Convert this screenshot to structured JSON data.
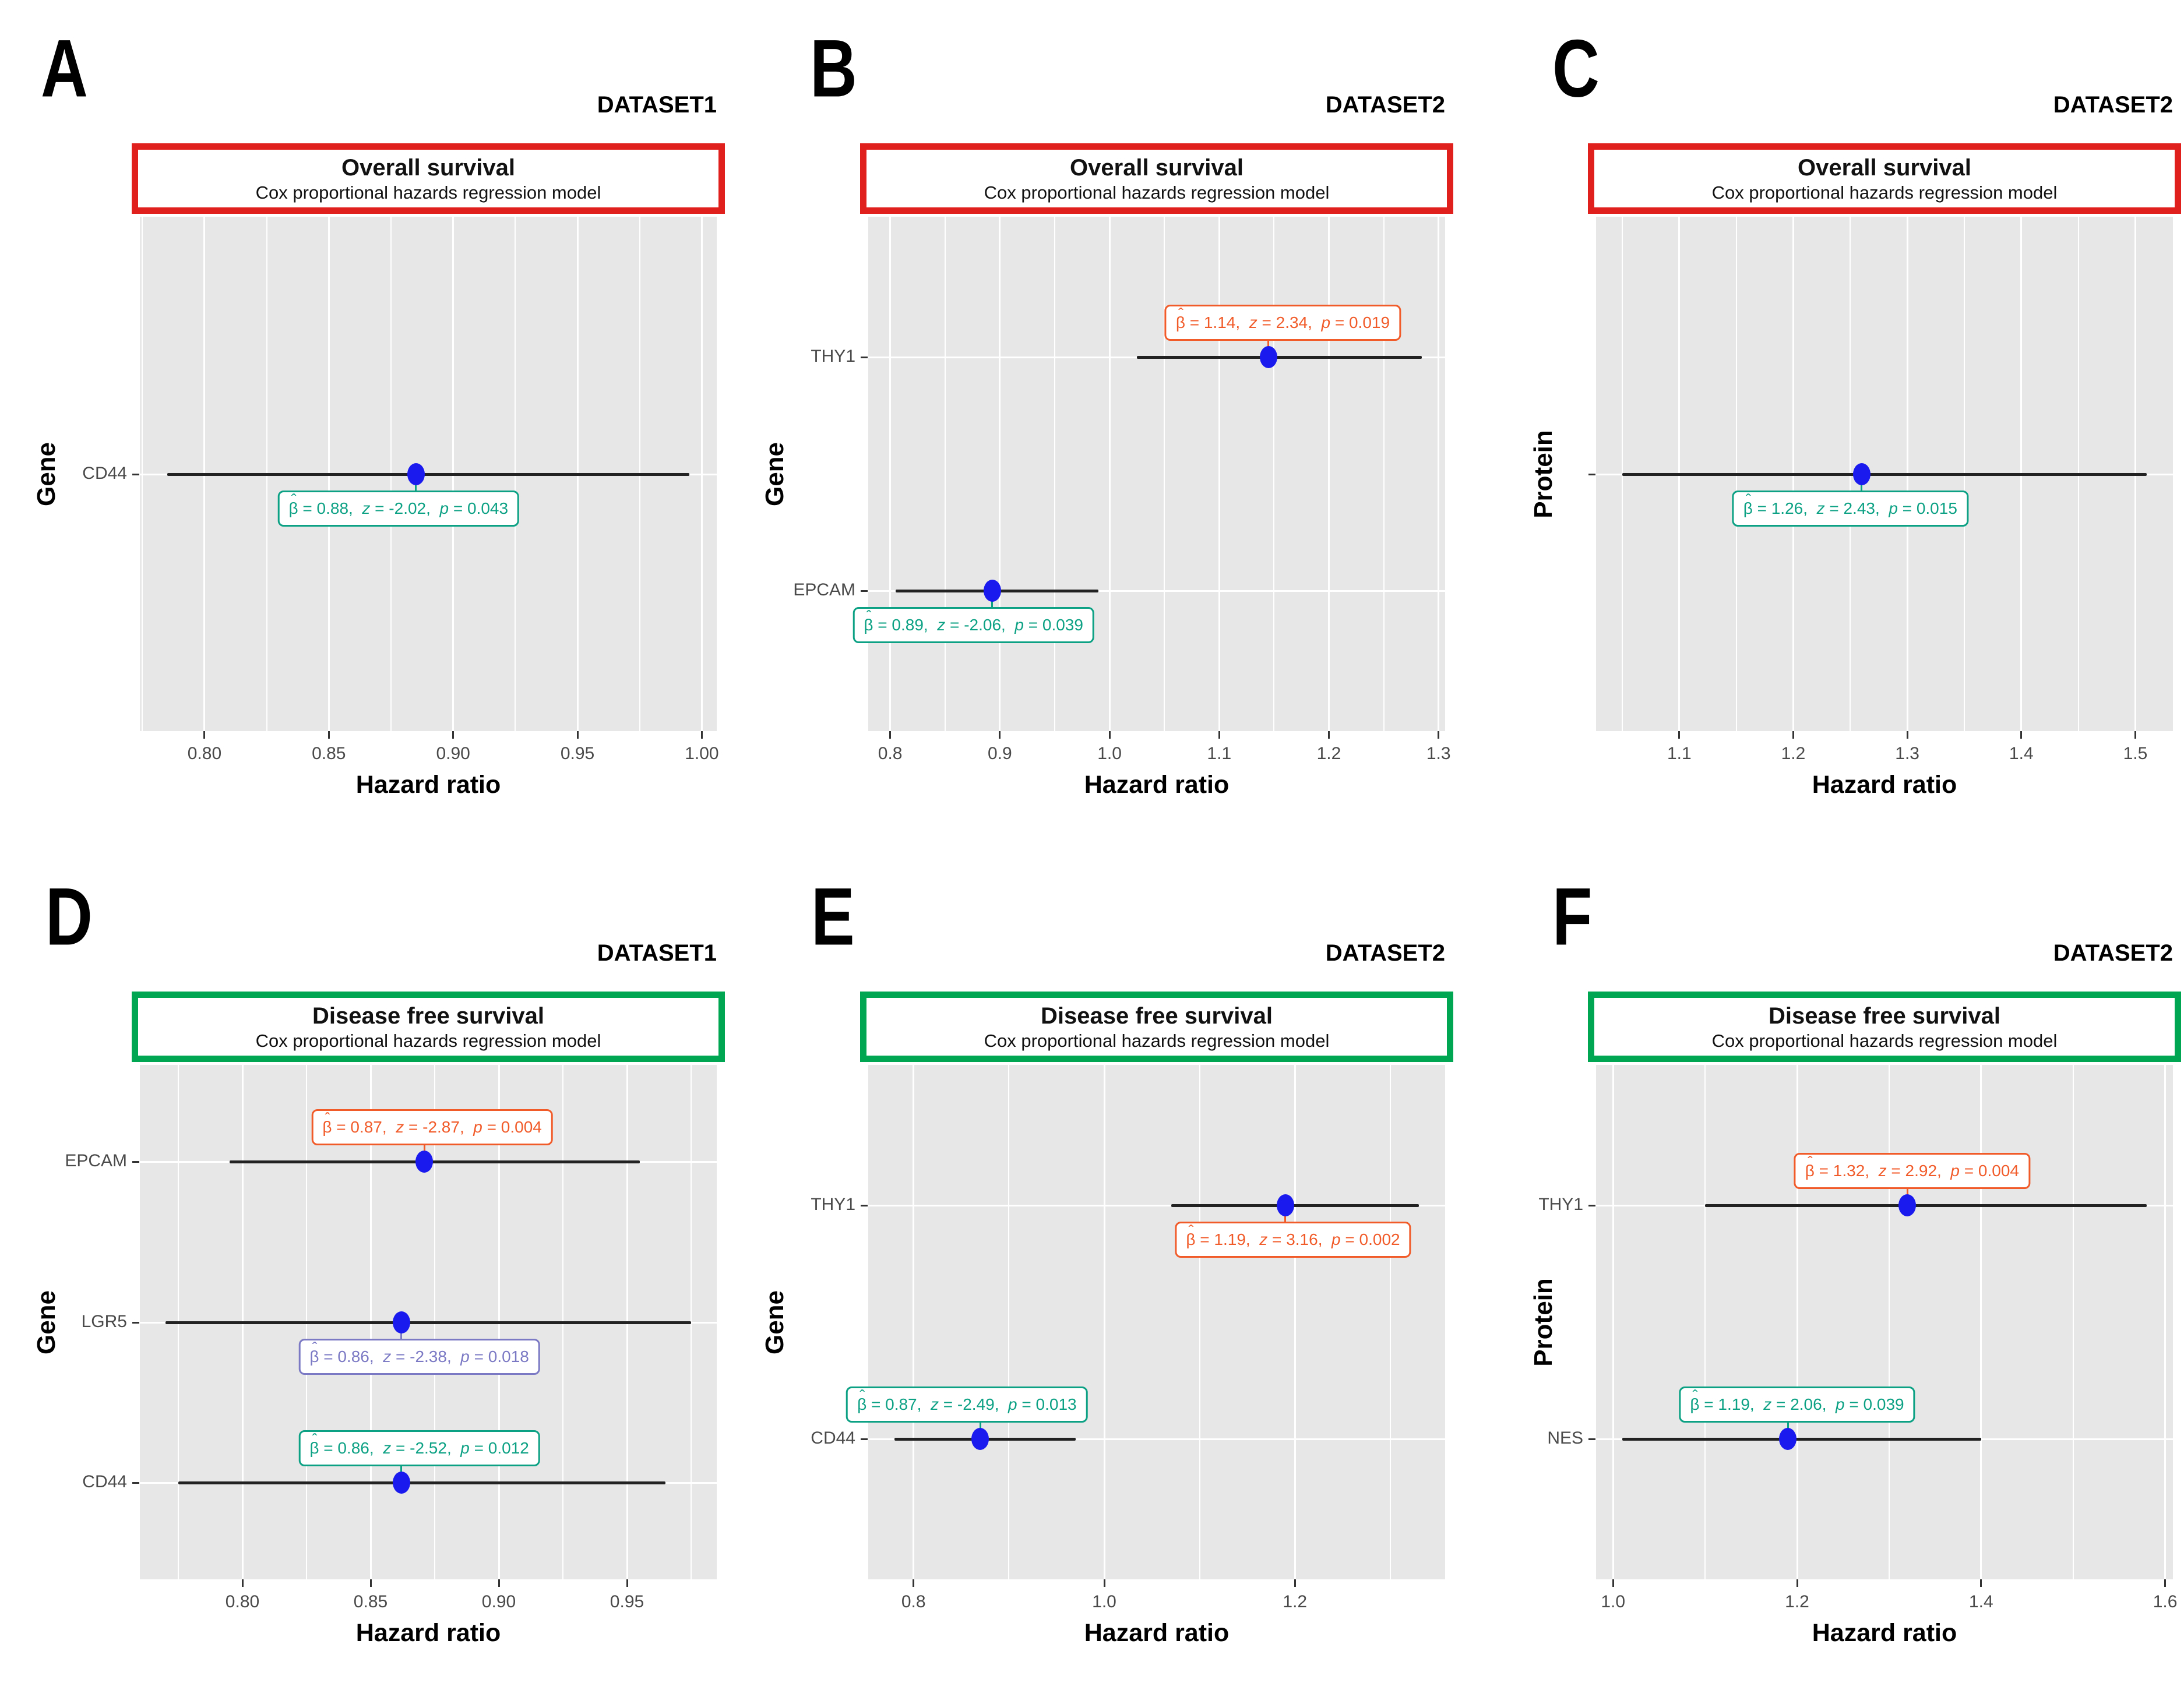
{
  "colors": {
    "page_bg": "#ffffff",
    "panel_bg": "#e7e7e7",
    "grid": "#ffffff",
    "ci": "#222222",
    "point": "#1a1aee",
    "axis_text": "#4a4a4a",
    "teal": "#0ca184",
    "orange": "#f15b2a",
    "purple": "#7b79c4",
    "header_red": "#e0201c",
    "header_green": "#00a651"
  },
  "symbols": {
    "beta": "β",
    "hat": "ˆ",
    "equals": " = ",
    "separator": ",  ",
    "z": "z",
    "p": "p"
  },
  "chart_data": [
    {
      "type": "scatter",
      "letter": "A",
      "dataset": "DATASET1",
      "title": "Overall survival",
      "subtitle": "Cox proportional hazards regression model",
      "header": "red",
      "ylabel": "Gene",
      "xlabel": "Hazard ratio",
      "xlim": [
        0.774,
        1.006
      ],
      "xticks": [
        0.8,
        0.85,
        0.9,
        0.95,
        1.0
      ],
      "xtick_labels": [
        "0.80",
        "0.85",
        "0.90",
        "0.95",
        "1.00"
      ],
      "grid": true,
      "rows": [
        {
          "label": "CD44",
          "estimate": 0.885,
          "ci_low": 0.785,
          "ci_high": 0.995,
          "beta": "0.88",
          "z": "-2.02",
          "p": "0.043",
          "color": "teal",
          "annotation_side": "below",
          "annotation_x": 0.878
        }
      ]
    },
    {
      "type": "scatter",
      "letter": "B",
      "dataset": "DATASET2",
      "title": "Overall survival",
      "subtitle": "Cox proportional hazards regression model",
      "header": "red",
      "ylabel": "Gene",
      "xlabel": "Hazard ratio",
      "xlim": [
        0.78,
        1.306
      ],
      "xticks": [
        0.8,
        0.9,
        1.0,
        1.1,
        1.2,
        1.3
      ],
      "xtick_labels": [
        "0.8",
        "0.9",
        "1.0",
        "1.1",
        "1.2",
        "1.3"
      ],
      "grid": true,
      "rows": [
        {
          "label": "THY1",
          "estimate": 1.145,
          "ci_low": 1.025,
          "ci_high": 1.285,
          "beta": "1.14",
          "z": "2.34",
          "p": "0.019",
          "color": "orange",
          "annotation_side": "above",
          "annotation_x": 1.158
        },
        {
          "label": "EPCAM",
          "estimate": 0.893,
          "ci_low": 0.805,
          "ci_high": 0.99,
          "beta": "0.89",
          "z": "-2.06",
          "p": "0.039",
          "color": "teal",
          "annotation_side": "below",
          "annotation_x": 0.876
        }
      ]
    },
    {
      "type": "scatter",
      "letter": "C",
      "dataset": "DATASET2",
      "title": "Overall survival",
      "subtitle": "Cox proportional hazards regression model",
      "header": "red",
      "ylabel": "Protein",
      "xlabel": "Hazard ratio",
      "xlim": [
        1.027,
        1.533
      ],
      "xticks": [
        1.1,
        1.2,
        1.3,
        1.4,
        1.5
      ],
      "xtick_labels": [
        "1.1",
        "1.2",
        "1.3",
        "1.4",
        "1.5"
      ],
      "grid": true,
      "rows": [
        {
          "label": "",
          "estimate": 1.26,
          "ci_low": 1.05,
          "ci_high": 1.51,
          "beta": "1.26",
          "z": "2.43",
          "p": "0.015",
          "color": "teal",
          "annotation_side": "below",
          "annotation_x": 1.25
        }
      ]
    },
    {
      "type": "scatter",
      "letter": "D",
      "dataset": "DATASET1",
      "title": "Disease free survival",
      "subtitle": "Cox proportional hazards regression model",
      "header": "green",
      "ylabel": "Gene",
      "xlabel": "Hazard ratio",
      "xlim": [
        0.76,
        0.985
      ],
      "xticks": [
        0.8,
        0.85,
        0.9,
        0.95
      ],
      "xtick_labels": [
        "0.80",
        "0.85",
        "0.90",
        "0.95"
      ],
      "grid": true,
      "rows": [
        {
          "label": "EPCAM",
          "estimate": 0.871,
          "ci_low": 0.795,
          "ci_high": 0.955,
          "beta": "0.87",
          "z": "-2.87",
          "p": "0.004",
          "color": "orange",
          "annotation_side": "above",
          "annotation_x": 0.874
        },
        {
          "label": "LGR5",
          "estimate": 0.862,
          "ci_low": 0.77,
          "ci_high": 0.975,
          "beta": "0.86",
          "z": "-2.38",
          "p": "0.018",
          "color": "purple",
          "annotation_side": "below",
          "annotation_x": 0.869
        },
        {
          "label": "CD44",
          "estimate": 0.862,
          "ci_low": 0.775,
          "ci_high": 0.965,
          "beta": "0.86",
          "z": "-2.52",
          "p": "0.012",
          "color": "teal",
          "annotation_side": "above",
          "annotation_x": 0.869
        }
      ]
    },
    {
      "type": "scatter",
      "letter": "E",
      "dataset": "DATASET2",
      "title": "Disease free survival",
      "subtitle": "Cox proportional hazards regression model",
      "header": "green",
      "ylabel": "Gene",
      "xlabel": "Hazard ratio",
      "xlim": [
        0.7525,
        1.3575
      ],
      "xticks": [
        0.8,
        1.0,
        1.2
      ],
      "xtick_labels": [
        "0.8",
        "1.0",
        "1.2"
      ],
      "grid": true,
      "rows": [
        {
          "label": "THY1",
          "estimate": 1.19,
          "ci_low": 1.07,
          "ci_high": 1.33,
          "beta": "1.19",
          "z": "3.16",
          "p": "0.002",
          "color": "orange",
          "annotation_side": "below",
          "annotation_x": 1.198
        },
        {
          "label": "CD44",
          "estimate": 0.87,
          "ci_low": 0.78,
          "ci_high": 0.97,
          "beta": "0.87",
          "z": "-2.49",
          "p": "0.013",
          "color": "teal",
          "annotation_side": "above",
          "annotation_x": 0.856
        }
      ]
    },
    {
      "type": "scatter",
      "letter": "F",
      "dataset": "DATASET2",
      "title": "Disease free survival",
      "subtitle": "Cox proportional hazards regression model",
      "header": "green",
      "ylabel": "Protein",
      "xlabel": "Hazard ratio",
      "xlim": [
        0.9815,
        1.6085
      ],
      "xticks": [
        1.0,
        1.2,
        1.4,
        1.6
      ],
      "xtick_labels": [
        "1.0",
        "1.2",
        "1.4",
        "1.6"
      ],
      "grid": true,
      "rows": [
        {
          "label": "THY1",
          "estimate": 1.32,
          "ci_low": 1.1,
          "ci_high": 1.58,
          "beta": "1.32",
          "z": "2.92",
          "p": "0.004",
          "color": "orange",
          "annotation_side": "above",
          "annotation_x": 1.325
        },
        {
          "label": "NES",
          "estimate": 1.19,
          "ci_low": 1.01,
          "ci_high": 1.4,
          "beta": "1.19",
          "z": "2.06",
          "p": "0.039",
          "color": "teal",
          "annotation_side": "above",
          "annotation_x": 1.2
        }
      ]
    }
  ]
}
